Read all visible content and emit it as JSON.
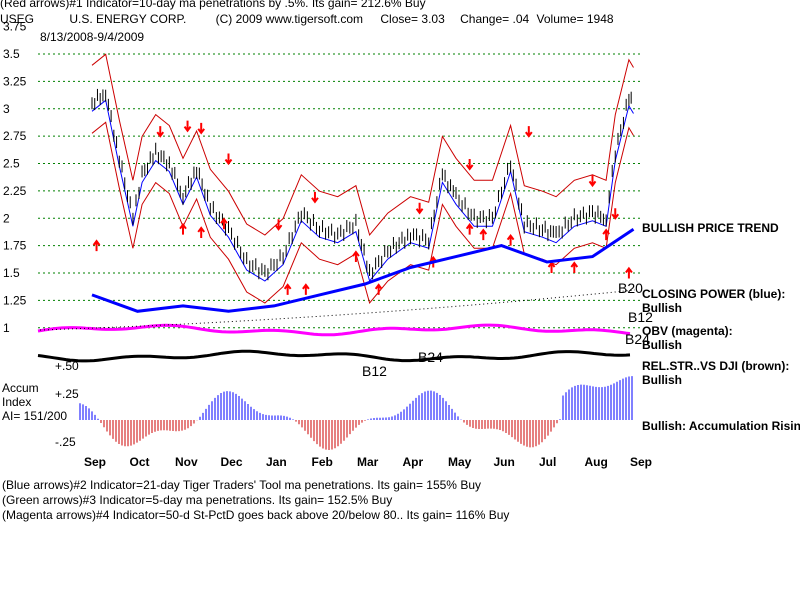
{
  "header": {
    "line1": "(Red arrows)#1 Indicator=10-day ma penetrations by .5%. Its gain= 212.6% Buy",
    "ticker": "USEG",
    "company": "U.S. ENERGY CORP.",
    "copyright": "(C) 2009 www.tigersoft.com",
    "close": "Close=  3.03",
    "change": "Change= .04",
    "volume": "Volume= 1948"
  },
  "date_range": "8/13/2008-9/4/2009",
  "footer": [
    "(Blue arrows)#2 Indicator=21-day Tiger Traders' Tool ma penetrations. Its gain= 155% Buy",
    "(Green arrows)#3 Indicator=5-day ma penetrations. Its gain= 152.5% Buy",
    "(Magenta arrows)#4 Indicator=50-d St-PctD goes back above 20/below 80.. Its gain= 116% Buy"
  ],
  "colors": {
    "price": "#000000",
    "grid": "#008000",
    "band": "#cc0000",
    "ma": "#0000ff",
    "closing_power": "#0000ff",
    "obv": "#ff00ff",
    "rel_strength": "#000000",
    "accum": "#0000ff",
    "accum_neg": "#cc0000",
    "arrow": "#ff0000"
  },
  "chart_data": {
    "type": "line",
    "title": "U.S. ENERGY CORP.",
    "price_axis": {
      "ticks": [
        "3.75",
        "3.5",
        "3.25",
        "3",
        "2.75",
        "2.5",
        "2.25",
        "2",
        "1.75",
        "1.5",
        "1.25",
        "1"
      ],
      "ylim": [
        1,
        3.75
      ]
    },
    "x_months": [
      "Sep",
      "Oct",
      "Nov",
      "Dec",
      "Jan",
      "Feb",
      "Mar",
      "Apr",
      "May",
      "Jun",
      "Jul",
      "Aug",
      "Sep"
    ],
    "accum_axis": {
      "ticks": [
        "+.50",
        "+.25",
        "-.25"
      ],
      "title": [
        "Accum",
        "Index"
      ],
      "ai": "AI= 151/200"
    },
    "series": [
      {
        "name": "Price",
        "points": [
          [
            0,
            3.05
          ],
          [
            0.3,
            3.15
          ],
          [
            0.6,
            2.55
          ],
          [
            0.9,
            2.0
          ],
          [
            1.1,
            2.4
          ],
          [
            1.4,
            2.6
          ],
          [
            1.7,
            2.5
          ],
          [
            2.0,
            2.2
          ],
          [
            2.3,
            2.45
          ],
          [
            2.6,
            2.1
          ],
          [
            3.0,
            1.9
          ],
          [
            3.4,
            1.6
          ],
          [
            3.8,
            1.5
          ],
          [
            4.2,
            1.65
          ],
          [
            4.6,
            2.05
          ],
          [
            5.0,
            1.9
          ],
          [
            5.4,
            1.85
          ],
          [
            5.8,
            1.95
          ],
          [
            6.1,
            1.5
          ],
          [
            6.5,
            1.7
          ],
          [
            7.0,
            1.85
          ],
          [
            7.4,
            1.8
          ],
          [
            7.7,
            2.4
          ],
          [
            8.0,
            2.2
          ],
          [
            8.4,
            2.0
          ],
          [
            8.8,
            2.0
          ],
          [
            9.2,
            2.5
          ],
          [
            9.5,
            1.95
          ],
          [
            9.9,
            1.9
          ],
          [
            10.2,
            1.85
          ],
          [
            10.6,
            2.0
          ],
          [
            11.0,
            2.05
          ],
          [
            11.3,
            2.0
          ],
          [
            11.5,
            2.6
          ],
          [
            11.8,
            3.1
          ],
          [
            11.9,
            3.03
          ]
        ]
      },
      {
        "name": "CLOSING POWER (blue)",
        "points": [
          [
            0,
            1.3
          ],
          [
            1,
            1.15
          ],
          [
            2,
            1.2
          ],
          [
            3,
            1.15
          ],
          [
            4,
            1.2
          ],
          [
            5,
            1.3
          ],
          [
            6,
            1.4
          ],
          [
            7,
            1.55
          ],
          [
            8,
            1.65
          ],
          [
            9,
            1.75
          ],
          [
            10,
            1.6
          ],
          [
            11,
            1.65
          ],
          [
            11.9,
            1.9
          ]
        ]
      }
    ],
    "right_labels": [
      "BULLISH PRICE TREND",
      "CLOSING POWER (blue):",
      "Bullish",
      "OBV (magenta):",
      "Bullish",
      "REL.STR..VS DJI (brown):",
      "Bullish",
      "Bullish: Accumulation Rising"
    ],
    "signal_labels": [
      "B20",
      "B12",
      "B24",
      "B12",
      "B24"
    ]
  }
}
